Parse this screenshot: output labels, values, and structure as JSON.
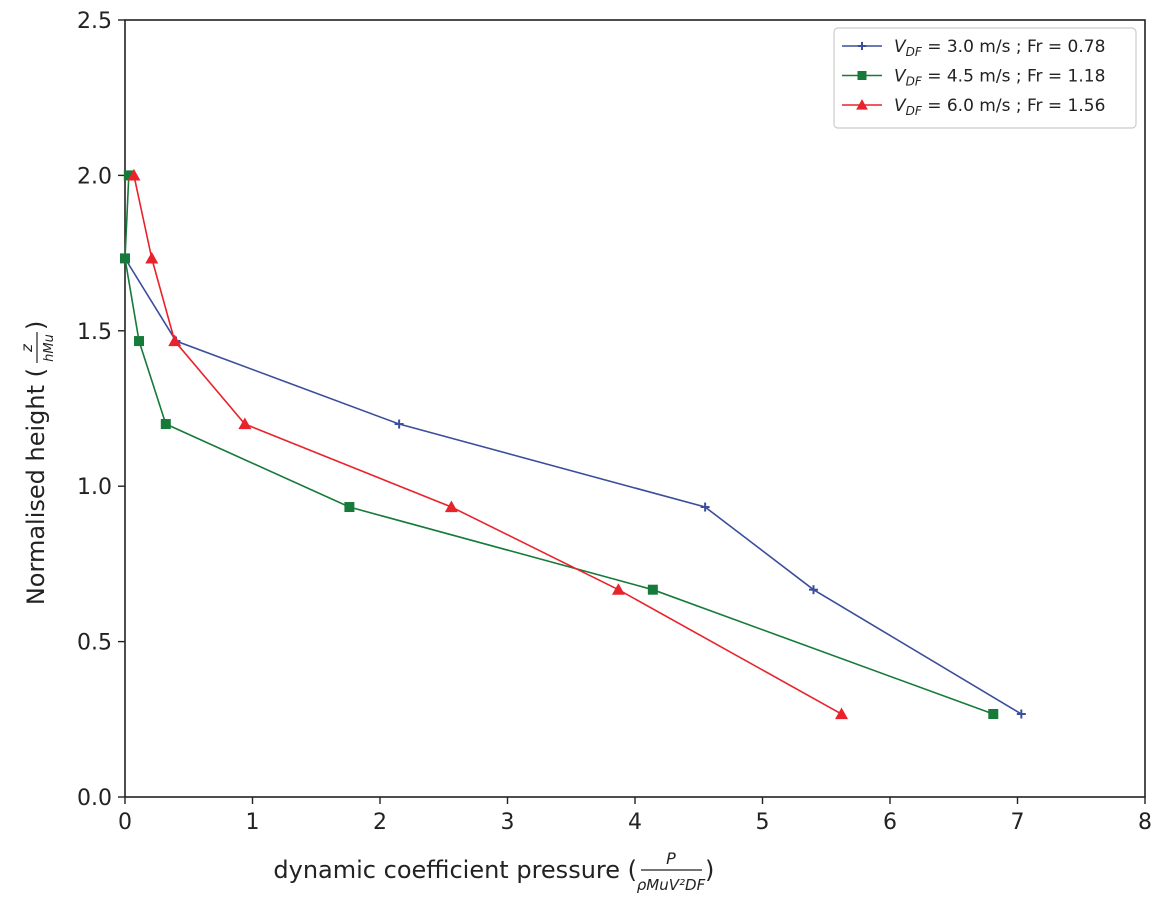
{
  "chart_data": {
    "type": "line",
    "title": "",
    "xlabel": "dynamic coefficient pressure",
    "xlabel_fraction": {
      "numerator": "P",
      "denominator": "ρMuV²DF"
    },
    "ylabel": "Normalised height",
    "ylabel_fraction": {
      "numerator": "z",
      "denominator": "hMu"
    },
    "xlim": [
      0,
      8
    ],
    "ylim": [
      0,
      2.5
    ],
    "xticks": [
      "0",
      "1",
      "2",
      "3",
      "4",
      "5",
      "6",
      "7",
      "8"
    ],
    "yticks": [
      "0.0",
      "0.5",
      "1.0",
      "1.5",
      "2.0",
      "2.5"
    ],
    "grid": false,
    "legend_position": "top-right",
    "series": [
      {
        "name": "V_DF = 3.0 m/s ; Fr = 0.78",
        "label_parts": {
          "v": "V",
          "sub": "DF",
          "rest": " = 3.0 m/s ; Fr = 0.78"
        },
        "color": "#3b4e9b",
        "marker": "plus",
        "x": [
          0.0,
          0.4,
          2.15,
          4.55,
          5.4,
          7.03
        ],
        "y": [
          1.733,
          1.467,
          1.2,
          0.933,
          0.667,
          0.267
        ]
      },
      {
        "name": "V_DF = 4.5 m/s ; Fr = 1.18",
        "label_parts": {
          "v": "V",
          "sub": "DF",
          "rest": " = 4.5 m/s ; Fr = 1.18"
        },
        "color": "#167a3a",
        "marker": "square",
        "x": [
          0.03,
          0.0,
          0.11,
          0.32,
          1.76,
          4.14,
          6.81
        ],
        "y": [
          2.0,
          1.733,
          1.467,
          1.2,
          0.933,
          0.667,
          0.267
        ]
      },
      {
        "name": "V_DF = 6.0 m/s ; Fr = 1.56",
        "label_parts": {
          "v": "V",
          "sub": "DF",
          "rest": " = 6.0 m/s ; Fr = 1.56"
        },
        "color": "#e8232b",
        "marker": "triangle",
        "x": [
          0.07,
          0.21,
          0.39,
          0.94,
          2.56,
          3.87,
          5.62
        ],
        "y": [
          2.0,
          1.733,
          1.467,
          1.2,
          0.933,
          0.667,
          0.267
        ]
      }
    ]
  }
}
